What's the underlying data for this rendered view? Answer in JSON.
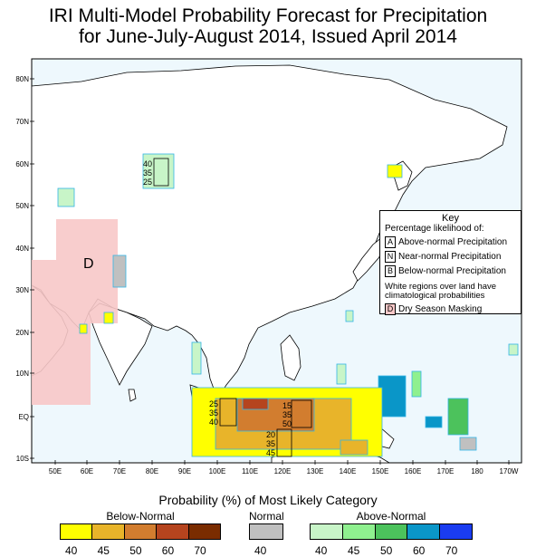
{
  "title": {
    "line1": "IRI Multi-Model Probability Forecast for Precipitation",
    "line2": "for June-July-August 2014, Issued April 2014"
  },
  "axes": {
    "lat_labels": [
      "80N",
      "70N",
      "60N",
      "50N",
      "40N",
      "30N",
      "20N",
      "10N",
      "EQ",
      "10S"
    ],
    "lon_labels": [
      "50E",
      "60E",
      "70E",
      "80E",
      "90E",
      "100E",
      "110E",
      "120E",
      "130E",
      "140E",
      "150E",
      "160E",
      "170E",
      "180",
      "170W"
    ]
  },
  "map_labels": {
    "dry_mask_letter": "D",
    "siberia": [
      "40",
      "35",
      "25"
    ],
    "borneo": [
      "25",
      "35",
      "40"
    ],
    "sulawesi": [
      "15",
      "35",
      "50"
    ],
    "south_sea": [
      "20",
      "35",
      "45"
    ]
  },
  "key": {
    "title": "Key",
    "heading": "Percentage likelihood of:",
    "items": [
      {
        "letter": "A",
        "label": "Above-normal Precipitation"
      },
      {
        "letter": "N",
        "label": "Near-normal Precipitation"
      },
      {
        "letter": "B",
        "label": "Below-normal Precipitation"
      }
    ],
    "white_note": "White regions over land have climatological probabilities",
    "dry": {
      "letter": "D",
      "label": "Dry Season Masking"
    }
  },
  "legend": {
    "title": "Probability (%) of Most Likely Category",
    "groups": [
      {
        "label": "Below-Normal",
        "ticks": [
          "40",
          "45",
          "50",
          "60",
          "70"
        ],
        "colors": [
          "#ffff00",
          "#e8b42a",
          "#d27d2f",
          "#b5441e",
          "#7a2c00"
        ]
      },
      {
        "label": "Normal",
        "ticks": [
          "40"
        ],
        "colors": [
          "#c0c0c0"
        ]
      },
      {
        "label": "Above-Normal",
        "ticks": [
          "40",
          "45",
          "50",
          "60",
          "70"
        ],
        "colors": [
          "#c8f5c8",
          "#8ff08f",
          "#4cc25c",
          "#0a96c8",
          "#1a3cf0"
        ]
      }
    ]
  },
  "colors": {
    "ocean": "#eef8fd",
    "land": "#ffffff",
    "dry_mask": "#f8c8c8",
    "coast": "#000000",
    "box_stroke": "#33b5e5"
  }
}
